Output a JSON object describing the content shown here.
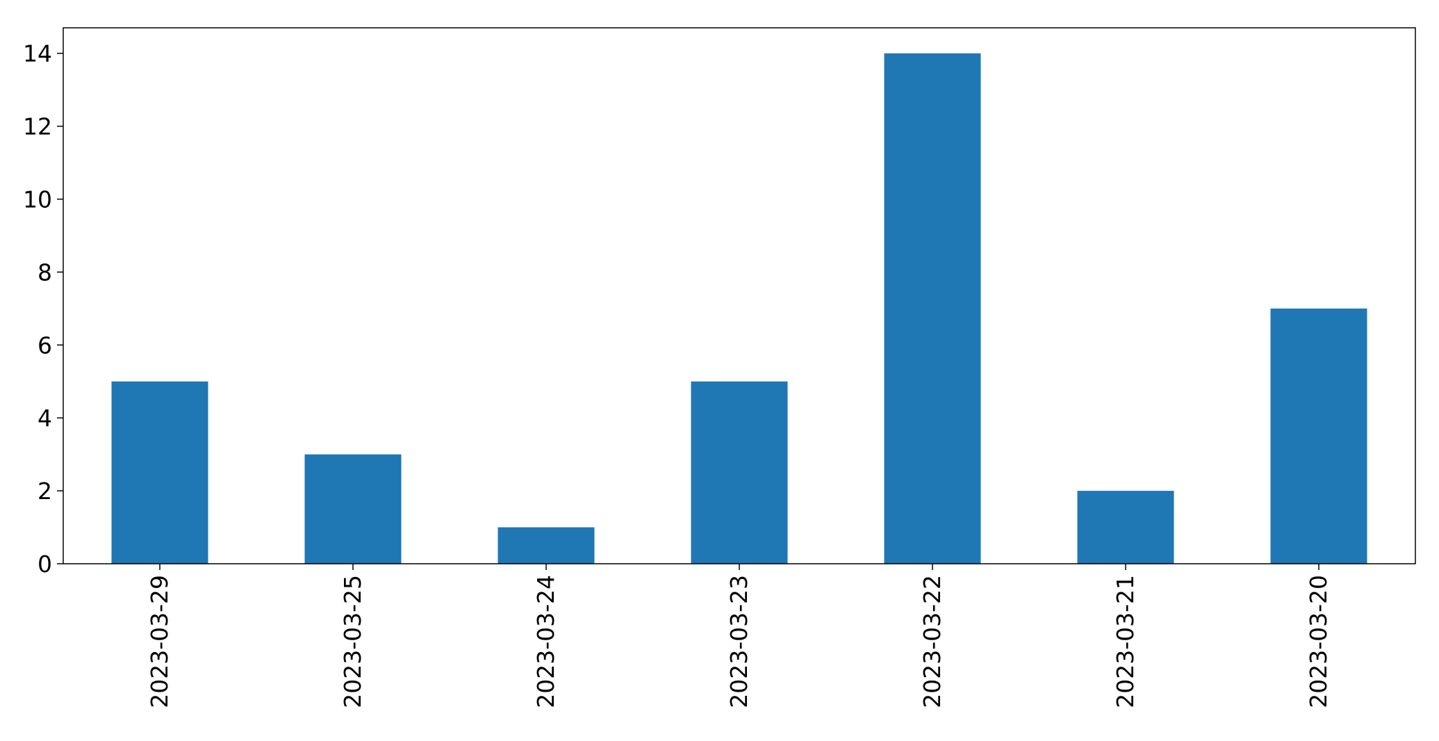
{
  "chart_data": {
    "type": "bar",
    "categories": [
      "2023-03-29",
      "2023-03-25",
      "2023-03-24",
      "2023-03-23",
      "2023-03-22",
      "2023-03-21",
      "2023-03-20"
    ],
    "values": [
      5,
      3,
      1,
      5,
      14,
      2,
      7
    ],
    "ylim": [
      0,
      14.7
    ],
    "yticks": [
      0,
      2,
      4,
      6,
      8,
      10,
      12,
      14
    ],
    "grid": false,
    "bar_color": "#1f77b4",
    "xlabel": "",
    "ylabel": "",
    "title": ""
  }
}
